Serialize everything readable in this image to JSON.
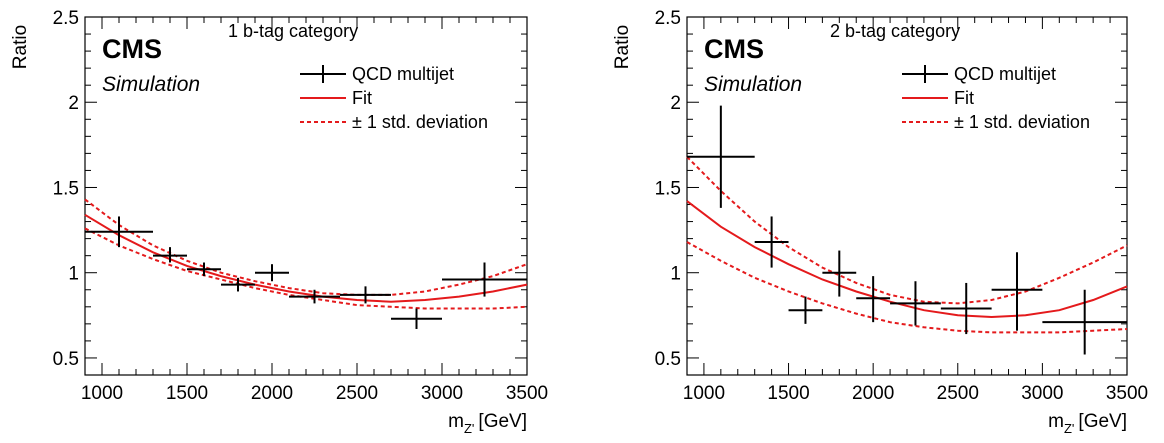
{
  "chart_data": [
    {
      "type": "scatter",
      "experiment": "CMS",
      "experiment_sub": "Simulation",
      "category": "1 b-tag category",
      "xlabel": "m",
      "xlabel_sub": "Z'",
      "xlabel_unit": "[GeV]",
      "ylabel": "Ratio",
      "xlim": [
        900,
        3500
      ],
      "ylim": [
        0.4,
        2.5
      ],
      "xticks": [
        1000,
        1500,
        2000,
        2500,
        3000,
        3500
      ],
      "xtick_labels": [
        "1000",
        "1500",
        "2000",
        "2500",
        "3000",
        "3500"
      ],
      "yticks": [
        0.5,
        1,
        1.5,
        2,
        2.5
      ],
      "ytick_labels": [
        "0.5",
        "1",
        "1.5",
        "2",
        "2.5"
      ],
      "legend": {
        "position": "top-right",
        "entries": [
          {
            "label": "QCD multijet",
            "style": "errorbar",
            "color": "#000000"
          },
          {
            "label": "Fit",
            "style": "solid",
            "color": "#e41a1c"
          },
          {
            "label": "± 1 std. deviation",
            "style": "dashed",
            "color": "#e41a1c"
          }
        ]
      },
      "series": [
        {
          "name": "QCD multijet",
          "style": "errorbar",
          "color": "#000000",
          "points": [
            {
              "x": 1100,
              "xlo": 900,
              "xhi": 1300,
              "y": 1.24,
              "ylo": 1.15,
              "yhi": 1.33
            },
            {
              "x": 1400,
              "xlo": 1300,
              "xhi": 1500,
              "y": 1.1,
              "ylo": 1.06,
              "yhi": 1.15
            },
            {
              "x": 1600,
              "xlo": 1500,
              "xhi": 1700,
              "y": 1.02,
              "ylo": 0.98,
              "yhi": 1.06
            },
            {
              "x": 1800,
              "xlo": 1700,
              "xhi": 1900,
              "y": 0.93,
              "ylo": 0.89,
              "yhi": 0.97
            },
            {
              "x": 2000,
              "xlo": 1900,
              "xhi": 2100,
              "y": 1.0,
              "ylo": 0.95,
              "yhi": 1.05
            },
            {
              "x": 2250,
              "xlo": 2100,
              "xhi": 2400,
              "y": 0.86,
              "ylo": 0.82,
              "yhi": 0.9
            },
            {
              "x": 2550,
              "xlo": 2400,
              "xhi": 2700,
              "y": 0.87,
              "ylo": 0.82,
              "yhi": 0.92
            },
            {
              "x": 2850,
              "xlo": 2700,
              "xhi": 3000,
              "y": 0.73,
              "ylo": 0.67,
              "yhi": 0.79
            },
            {
              "x": 3250,
              "xlo": 3000,
              "xhi": 3500,
              "y": 0.96,
              "ylo": 0.86,
              "yhi": 1.06
            }
          ]
        },
        {
          "name": "Fit",
          "style": "solid",
          "color": "#e41a1c",
          "x": [
            900,
            1100,
            1300,
            1500,
            1700,
            1900,
            2100,
            2300,
            2500,
            2700,
            2900,
            3100,
            3300,
            3500
          ],
          "y": [
            1.34,
            1.22,
            1.12,
            1.04,
            0.98,
            0.93,
            0.89,
            0.86,
            0.84,
            0.83,
            0.84,
            0.86,
            0.89,
            0.93
          ]
        },
        {
          "name": "+1 std. deviation",
          "style": "dashed",
          "color": "#e41a1c",
          "x": [
            900,
            1100,
            1300,
            1500,
            1700,
            1900,
            2100,
            2300,
            2500,
            2700,
            2900,
            3100,
            3300,
            3500
          ],
          "y": [
            1.43,
            1.28,
            1.16,
            1.07,
            1.0,
            0.95,
            0.91,
            0.88,
            0.87,
            0.87,
            0.89,
            0.93,
            0.98,
            1.05
          ]
        },
        {
          "name": "-1 std. deviation",
          "style": "dashed",
          "color": "#e41a1c",
          "x": [
            900,
            1100,
            1300,
            1500,
            1700,
            1900,
            2100,
            2300,
            2500,
            2700,
            2900,
            3100,
            3300,
            3500
          ],
          "y": [
            1.26,
            1.16,
            1.08,
            1.01,
            0.96,
            0.91,
            0.87,
            0.84,
            0.81,
            0.8,
            0.79,
            0.79,
            0.79,
            0.8
          ]
        }
      ]
    },
    {
      "type": "scatter",
      "experiment": "CMS",
      "experiment_sub": "Simulation",
      "category": "2 b-tag category",
      "xlabel": "m",
      "xlabel_sub": "Z'",
      "xlabel_unit": "[GeV]",
      "ylabel": "Ratio",
      "xlim": [
        900,
        3500
      ],
      "ylim": [
        0.4,
        2.5
      ],
      "xticks": [
        1000,
        1500,
        2000,
        2500,
        3000,
        3500
      ],
      "xtick_labels": [
        "1000",
        "1500",
        "2000",
        "2500",
        "3000",
        "3500"
      ],
      "yticks": [
        0.5,
        1,
        1.5,
        2,
        2.5
      ],
      "ytick_labels": [
        "0.5",
        "1",
        "1.5",
        "2",
        "2.5"
      ],
      "legend": {
        "position": "top-right",
        "entries": [
          {
            "label": "QCD multijet",
            "style": "errorbar",
            "color": "#000000"
          },
          {
            "label": "Fit",
            "style": "solid",
            "color": "#e41a1c"
          },
          {
            "label": "± 1 std. deviation",
            "style": "dashed",
            "color": "#e41a1c"
          }
        ]
      },
      "series": [
        {
          "name": "QCD multijet",
          "style": "errorbar",
          "color": "#000000",
          "points": [
            {
              "x": 1100,
              "xlo": 900,
              "xhi": 1300,
              "y": 1.68,
              "ylo": 1.38,
              "yhi": 1.98
            },
            {
              "x": 1400,
              "xlo": 1300,
              "xhi": 1500,
              "y": 1.18,
              "ylo": 1.03,
              "yhi": 1.33
            },
            {
              "x": 1600,
              "xlo": 1500,
              "xhi": 1700,
              "y": 0.78,
              "ylo": 0.7,
              "yhi": 0.86
            },
            {
              "x": 1800,
              "xlo": 1700,
              "xhi": 1900,
              "y": 1.0,
              "ylo": 0.86,
              "yhi": 1.13
            },
            {
              "x": 2000,
              "xlo": 1900,
              "xhi": 2100,
              "y": 0.85,
              "ylo": 0.71,
              "yhi": 0.98
            },
            {
              "x": 2250,
              "xlo": 2100,
              "xhi": 2400,
              "y": 0.82,
              "ylo": 0.69,
              "yhi": 0.95
            },
            {
              "x": 2550,
              "xlo": 2400,
              "xhi": 2700,
              "y": 0.79,
              "ylo": 0.64,
              "yhi": 0.94
            },
            {
              "x": 2850,
              "xlo": 2700,
              "xhi": 3000,
              "y": 0.9,
              "ylo": 0.66,
              "yhi": 1.12
            },
            {
              "x": 3250,
              "xlo": 3000,
              "xhi": 3500,
              "y": 0.71,
              "ylo": 0.52,
              "yhi": 0.9
            }
          ]
        },
        {
          "name": "Fit",
          "style": "solid",
          "color": "#e41a1c",
          "x": [
            900,
            1100,
            1300,
            1500,
            1700,
            1900,
            2100,
            2300,
            2500,
            2700,
            2900,
            3100,
            3300,
            3500
          ],
          "y": [
            1.42,
            1.27,
            1.15,
            1.05,
            0.96,
            0.89,
            0.83,
            0.78,
            0.75,
            0.74,
            0.75,
            0.78,
            0.84,
            0.92
          ]
        },
        {
          "name": "+1 std. deviation",
          "style": "dashed",
          "color": "#e41a1c",
          "x": [
            900,
            1100,
            1300,
            1500,
            1700,
            1900,
            2100,
            2300,
            2500,
            2700,
            2900,
            3100,
            3300,
            3500
          ],
          "y": [
            1.68,
            1.48,
            1.3,
            1.15,
            1.03,
            0.94,
            0.87,
            0.83,
            0.82,
            0.84,
            0.89,
            0.97,
            1.06,
            1.16
          ]
        },
        {
          "name": "-1 std. deviation",
          "style": "dashed",
          "color": "#e41a1c",
          "x": [
            900,
            1100,
            1300,
            1500,
            1700,
            1900,
            2100,
            2300,
            2500,
            2700,
            2900,
            3100,
            3300,
            3500
          ],
          "y": [
            1.18,
            1.07,
            0.97,
            0.89,
            0.82,
            0.76,
            0.71,
            0.68,
            0.66,
            0.65,
            0.65,
            0.65,
            0.66,
            0.67
          ]
        }
      ]
    }
  ]
}
